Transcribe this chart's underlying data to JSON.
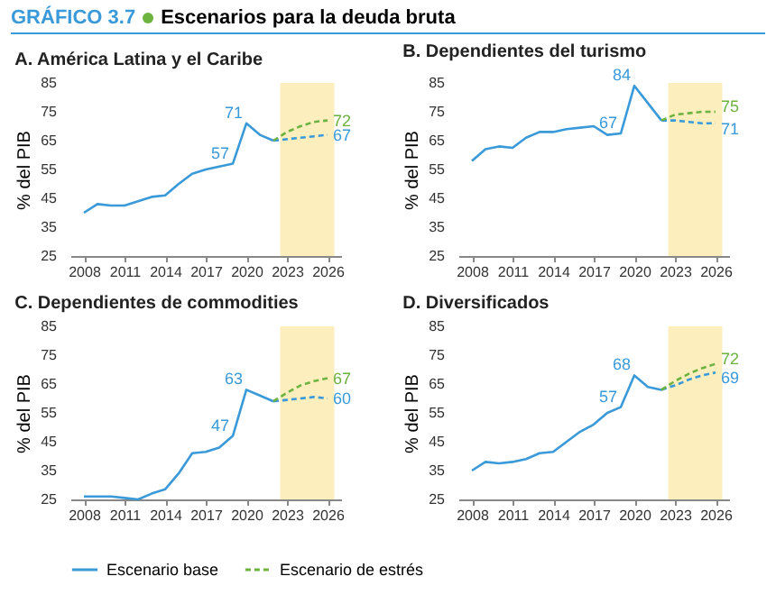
{
  "chart_data": [
    {
      "type": "line",
      "title": "A. América Latina y el Caribe",
      "ylabel": "% del PIB",
      "annotations": [
        "GRÁFICO 3.7",
        "Escenarios para la deuda bruta",
        {
          "text": "71",
          "x": 2020,
          "y": 71
        },
        {
          "text": "57",
          "x": 2019,
          "y": 57
        },
        {
          "text": "72",
          "x": 2026,
          "y": 72
        },
        {
          "text": "67",
          "x": 2026,
          "y": 67
        }
      ],
      "x": [
        2008,
        2009,
        2010,
        2011,
        2012,
        2013,
        2014,
        2015,
        2016,
        2017,
        2018,
        2019,
        2020,
        2021,
        2022,
        2023,
        2024,
        2025,
        2026
      ],
      "series": [
        {
          "name": "Escenario base",
          "color": "#3a9ad9",
          "line_style": "solid",
          "values": [
            40,
            43,
            42.5,
            42.5,
            44,
            45.5,
            46,
            50,
            53.5,
            55,
            56,
            57,
            71,
            67,
            65,
            null,
            null,
            null,
            null
          ]
        },
        {
          "color": "#3a9ad9",
          "line_style": "dashed",
          "values": [
            null,
            null,
            null,
            null,
            null,
            null,
            null,
            null,
            null,
            null,
            null,
            null,
            null,
            null,
            65,
            65.5,
            66,
            66.5,
            67
          ]
        },
        {
          "name": "Escenario de estrés",
          "color": "#6cb33f",
          "line_style": "dashed",
          "values": [
            null,
            null,
            null,
            null,
            null,
            null,
            null,
            null,
            null,
            null,
            null,
            null,
            null,
            null,
            65,
            68,
            70,
            71.5,
            72
          ]
        }
      ],
      "xlim": [
        2007,
        2027
      ],
      "xticks": [
        2008,
        2011,
        2014,
        2017,
        2020,
        2023,
        2026
      ],
      "ylim": [
        25,
        85
      ],
      "yticks": [
        25,
        35,
        45,
        55,
        65,
        75,
        85
      ],
      "bands": [
        {
          "axis": "x",
          "from": 2022.5,
          "to": 2026.5,
          "color": "#fdeebd"
        }
      ],
      "grid": false,
      "legend": "bottom"
    },
    {
      "type": "line",
      "title": "B. Dependientes del turismo",
      "ylabel": "% del PIB",
      "annotations": [
        {
          "text": "84",
          "x": 2020,
          "y": 84
        },
        {
          "text": "67",
          "x": 2019,
          "y": 67.5
        },
        {
          "text": "75",
          "x": 2026,
          "y": 75
        },
        {
          "text": "71",
          "x": 2026,
          "y": 71
        }
      ],
      "x": [
        2008,
        2009,
        2010,
        2011,
        2012,
        2013,
        2014,
        2015,
        2016,
        2017,
        2018,
        2019,
        2020,
        2021,
        2022,
        2023,
        2024,
        2025,
        2026
      ],
      "series": [
        {
          "name": "Escenario base",
          "color": "#3a9ad9",
          "line_style": "solid",
          "values": [
            58,
            62,
            63,
            62.5,
            66,
            68,
            68,
            69,
            69.5,
            70,
            67,
            67.5,
            84,
            78,
            72,
            null,
            null,
            null,
            null
          ]
        },
        {
          "color": "#3a9ad9",
          "line_style": "dashed",
          "values": [
            null,
            null,
            null,
            null,
            null,
            null,
            null,
            null,
            null,
            null,
            null,
            null,
            null,
            null,
            72,
            72,
            71.5,
            71,
            71
          ]
        },
        {
          "name": "Escenario de estrés",
          "color": "#6cb33f",
          "line_style": "dashed",
          "values": [
            null,
            null,
            null,
            null,
            null,
            null,
            null,
            null,
            null,
            null,
            null,
            null,
            null,
            null,
            72,
            74,
            74.5,
            75,
            75
          ]
        }
      ],
      "xlim": [
        2007,
        2027
      ],
      "xticks": [
        2008,
        2011,
        2014,
        2017,
        2020,
        2023,
        2026
      ],
      "ylim": [
        25,
        85
      ],
      "yticks": [
        25,
        35,
        45,
        55,
        65,
        75,
        85
      ],
      "bands": [
        {
          "axis": "x",
          "from": 2022.5,
          "to": 2026.5,
          "color": "#fdeebd"
        }
      ],
      "grid": false,
      "legend": "bottom"
    },
    {
      "type": "line",
      "title": "C. Dependientes de commodities",
      "ylabel": "% del PIB",
      "annotations": [
        {
          "text": "63",
          "x": 2020,
          "y": 63
        },
        {
          "text": "47",
          "x": 2019,
          "y": 47
        },
        {
          "text": "67",
          "x": 2026,
          "y": 67
        },
        {
          "text": "60",
          "x": 2026,
          "y": 60
        }
      ],
      "x": [
        2008,
        2009,
        2010,
        2011,
        2012,
        2013,
        2014,
        2015,
        2016,
        2017,
        2018,
        2019,
        2020,
        2021,
        2022,
        2023,
        2024,
        2025,
        2026
      ],
      "series": [
        {
          "name": "Escenario base",
          "color": "#3a9ad9",
          "line_style": "solid",
          "values": [
            26,
            26,
            26,
            25.5,
            25,
            27,
            28.5,
            34,
            41,
            41.5,
            43,
            47,
            63,
            61,
            59,
            null,
            null,
            null,
            null
          ]
        },
        {
          "color": "#3a9ad9",
          "line_style": "dashed",
          "values": [
            null,
            null,
            null,
            null,
            null,
            null,
            null,
            null,
            null,
            null,
            null,
            null,
            null,
            null,
            59,
            59.5,
            60,
            60.5,
            60
          ]
        },
        {
          "name": "Escenario de estrés",
          "color": "#6cb33f",
          "line_style": "dashed",
          "values": [
            null,
            null,
            null,
            null,
            null,
            null,
            null,
            null,
            null,
            null,
            null,
            null,
            null,
            null,
            59,
            62,
            64.5,
            66,
            67
          ]
        }
      ],
      "xlim": [
        2007,
        2027
      ],
      "xticks": [
        2008,
        2011,
        2014,
        2017,
        2020,
        2023,
        2026
      ],
      "ylim": [
        25,
        85
      ],
      "yticks": [
        25,
        35,
        45,
        55,
        65,
        75,
        85
      ],
      "bands": [
        {
          "axis": "x",
          "from": 2022.5,
          "to": 2026.5,
          "color": "#fdeebd"
        }
      ],
      "grid": false,
      "legend": "bottom"
    },
    {
      "type": "line",
      "title": "D. Diversificados",
      "ylabel": "% del PIB",
      "annotations": [
        {
          "text": "68",
          "x": 2020,
          "y": 68
        },
        {
          "text": "57",
          "x": 2019,
          "y": 57
        },
        {
          "text": "72",
          "x": 2026,
          "y": 72
        },
        {
          "text": "69",
          "x": 2026,
          "y": 69
        }
      ],
      "x": [
        2008,
        2009,
        2010,
        2011,
        2012,
        2013,
        2014,
        2015,
        2016,
        2017,
        2018,
        2019,
        2020,
        2021,
        2022,
        2023,
        2024,
        2025,
        2026
      ],
      "series": [
        {
          "name": "Escenario base",
          "color": "#3a9ad9",
          "line_style": "solid",
          "values": [
            35,
            38,
            37.5,
            38,
            39,
            41,
            41.5,
            45,
            48.5,
            51,
            55,
            57,
            68,
            64,
            63,
            null,
            null,
            null,
            null
          ]
        },
        {
          "color": "#3a9ad9",
          "line_style": "dashed",
          "values": [
            null,
            null,
            null,
            null,
            null,
            null,
            null,
            null,
            null,
            null,
            null,
            null,
            null,
            null,
            63,
            64.5,
            66.5,
            68,
            69
          ]
        },
        {
          "name": "Escenario de estrés",
          "color": "#6cb33f",
          "line_style": "dashed",
          "values": [
            null,
            null,
            null,
            null,
            null,
            null,
            null,
            null,
            null,
            null,
            null,
            null,
            null,
            null,
            63,
            66,
            68.5,
            70.5,
            72
          ]
        }
      ],
      "xlim": [
        2007,
        2027
      ],
      "xticks": [
        2008,
        2011,
        2014,
        2017,
        2020,
        2023,
        2026
      ],
      "ylim": [
        25,
        85
      ],
      "yticks": [
        25,
        35,
        45,
        55,
        65,
        75,
        85
      ],
      "bands": [
        {
          "axis": "x",
          "from": 2022.5,
          "to": 2026.5,
          "color": "#fdeebd"
        }
      ],
      "grid": false,
      "legend": "bottom"
    }
  ]
}
